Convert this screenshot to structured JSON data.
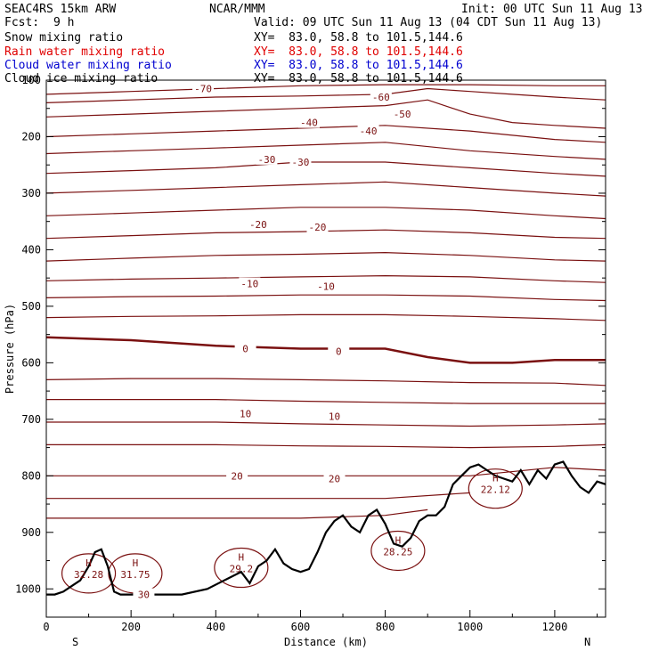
{
  "header": {
    "model": "SEAC4RS 15km ARW",
    "org": "NCAR/MMM",
    "init": "Init: 00 UTC Sun 11 Aug 13",
    "fcst_label": "Fcst:",
    "fcst_value": "9 h",
    "valid": "Valid: 09 UTC Sun 11 Aug 13 (04 CDT Sun 11 Aug 13)"
  },
  "fields": [
    {
      "name": "Snow mixing ratio",
      "xy": "XY=  83.0, 58.8 to 101.5,144.6",
      "color": "#000000"
    },
    {
      "name": "Rain water mixing ratio",
      "xy": "XY=  83.0, 58.8 to 101.5,144.6",
      "color": "#e00000"
    },
    {
      "name": "Cloud water mixing ratio",
      "xy": "XY=  83.0, 58.8 to 101.5,144.6",
      "color": "#0000d0"
    },
    {
      "name": "Cloud ice mixing ratio",
      "xy": "XY=  83.0, 58.8 to 101.5,144.6",
      "color": "#000000"
    }
  ],
  "chart_data": {
    "type": "line",
    "xlabel": "Distance (km)",
    "ylabel": "Pressure (hPa)",
    "xlim": [
      0,
      1320
    ],
    "ylim": [
      1050,
      100
    ],
    "x_ticks": [
      0,
      200,
      400,
      600,
      800,
      1000,
      1200
    ],
    "y_ticks": [
      200,
      300,
      400,
      500,
      600,
      700,
      800,
      900,
      1000
    ],
    "y_ticks_labeled": [
      "200",
      "300",
      "400",
      "500",
      "600",
      "700",
      "800",
      "900",
      "1000"
    ],
    "x_ticks_labeled": [
      "0",
      "200",
      "400",
      "600",
      "800",
      "1000",
      "1200"
    ],
    "y_top_label": "100",
    "x_end_labels": {
      "left": "S",
      "right": "N"
    },
    "line_color": "#7a1010",
    "terrain_color": "#000000",
    "contours": [
      {
        "x": [
          0,
          200,
          400,
          600,
          800,
          900,
          1000,
          1100,
          1200,
          1320
        ],
        "y": [
          555,
          560,
          570,
          575,
          575,
          590,
          600,
          600,
          595,
          595
        ],
        "bold": true
      },
      {
        "x": [
          0,
          200,
          400,
          600,
          800,
          1000,
          1200,
          1320
        ],
        "y": [
          125,
          120,
          115,
          110,
          108,
          108,
          110,
          110
        ]
      },
      {
        "x": [
          0,
          200,
          400,
          600,
          800,
          900,
          1000,
          1100,
          1200,
          1320
        ],
        "y": [
          140,
          135,
          130,
          128,
          125,
          115,
          120,
          125,
          130,
          135
        ]
      },
      {
        "x": [
          0,
          200,
          400,
          600,
          800,
          900,
          1000,
          1100,
          1200,
          1320
        ],
        "y": [
          165,
          160,
          155,
          150,
          145,
          135,
          160,
          175,
          180,
          185
        ]
      },
      {
        "x": [
          0,
          200,
          400,
          600,
          800,
          1000,
          1200,
          1320
        ],
        "y": [
          200,
          195,
          190,
          185,
          180,
          190,
          205,
          210
        ]
      },
      {
        "x": [
          0,
          200,
          400,
          600,
          800,
          1000,
          1200,
          1320
        ],
        "y": [
          230,
          225,
          220,
          215,
          210,
          225,
          235,
          240
        ]
      },
      {
        "x": [
          0,
          200,
          400,
          600,
          800,
          1000,
          1200,
          1320
        ],
        "y": [
          265,
          260,
          255,
          245,
          245,
          255,
          265,
          270
        ]
      },
      {
        "x": [
          0,
          200,
          400,
          600,
          800,
          1000,
          1200,
          1320
        ],
        "y": [
          300,
          295,
          290,
          285,
          280,
          290,
          300,
          305
        ]
      },
      {
        "x": [
          0,
          200,
          400,
          600,
          800,
          1000,
          1200,
          1320
        ],
        "y": [
          340,
          335,
          330,
          325,
          325,
          330,
          340,
          345
        ]
      },
      {
        "x": [
          0,
          200,
          400,
          600,
          800,
          1000,
          1200,
          1320
        ],
        "y": [
          380,
          375,
          370,
          368,
          365,
          370,
          378,
          380
        ]
      },
      {
        "x": [
          0,
          200,
          400,
          600,
          800,
          1000,
          1200,
          1320
        ],
        "y": [
          420,
          415,
          410,
          408,
          405,
          410,
          418,
          420
        ]
      },
      {
        "x": [
          0,
          200,
          400,
          600,
          800,
          1000,
          1200,
          1320
        ],
        "y": [
          455,
          452,
          450,
          448,
          446,
          448,
          455,
          458
        ]
      },
      {
        "x": [
          0,
          200,
          400,
          600,
          800,
          1000,
          1200,
          1320
        ],
        "y": [
          485,
          483,
          482,
          480,
          480,
          482,
          488,
          490
        ]
      },
      {
        "x": [
          0,
          200,
          400,
          600,
          800,
          1000,
          1200,
          1320
        ],
        "y": [
          520,
          518,
          517,
          515,
          515,
          518,
          522,
          525
        ]
      },
      {
        "x": [
          0,
          200,
          400,
          600,
          800,
          1000,
          1200,
          1320
        ],
        "y": [
          630,
          628,
          628,
          630,
          632,
          635,
          636,
          640
        ]
      },
      {
        "x": [
          0,
          200,
          400,
          600,
          800,
          1000,
          1200,
          1320
        ],
        "y": [
          665,
          665,
          665,
          668,
          670,
          672,
          672,
          672
        ]
      },
      {
        "x": [
          0,
          200,
          400,
          600,
          800,
          1000,
          1200,
          1320
        ],
        "y": [
          705,
          705,
          705,
          708,
          710,
          712,
          710,
          708
        ]
      },
      {
        "x": [
          0,
          200,
          400,
          600,
          800,
          1000,
          1200,
          1320
        ],
        "y": [
          745,
          745,
          745,
          747,
          748,
          750,
          748,
          745
        ]
      },
      {
        "x": [
          0,
          200,
          400,
          600,
          800,
          1000,
          1200,
          1320
        ],
        "y": [
          800,
          800,
          800,
          800,
          800,
          800,
          785,
          790
        ]
      },
      {
        "x": [
          0,
          200,
          400,
          600,
          800,
          1000
        ],
        "y": [
          840,
          840,
          840,
          840,
          840,
          830
        ]
      },
      {
        "x": [
          0,
          200,
          400,
          600,
          800,
          900
        ],
        "y": [
          875,
          875,
          875,
          875,
          870,
          860
        ]
      }
    ],
    "contour_labels": [
      {
        "text": "-70",
        "x": 370,
        "y": 115
      },
      {
        "text": "-60",
        "x": 790,
        "y": 130
      },
      {
        "text": "-50",
        "x": 840,
        "y": 160
      },
      {
        "text": "-40",
        "x": 620,
        "y": 175
      },
      {
        "text": "-40",
        "x": 760,
        "y": 190
      },
      {
        "text": "-30",
        "x": 520,
        "y": 240
      },
      {
        "text": "-30",
        "x": 600,
        "y": 245
      },
      {
        "text": "-20",
        "x": 500,
        "y": 355
      },
      {
        "text": "-20",
        "x": 640,
        "y": 360
      },
      {
        "text": "-10",
        "x": 480,
        "y": 460
      },
      {
        "text": "-10",
        "x": 660,
        "y": 465
      },
      {
        "text": "0",
        "x": 470,
        "y": 575
      },
      {
        "text": "0",
        "x": 690,
        "y": 580
      },
      {
        "text": "10",
        "x": 470,
        "y": 690
      },
      {
        "text": "10",
        "x": 680,
        "y": 695
      },
      {
        "text": "20",
        "x": 450,
        "y": 800
      },
      {
        "text": "20",
        "x": 680,
        "y": 805
      },
      {
        "text": "30",
        "x": 230,
        "y": 1010
      }
    ],
    "highs": [
      {
        "text": "H",
        "value": "32.28",
        "x": 100,
        "y": 960
      },
      {
        "text": "H",
        "value": "31.75",
        "x": 210,
        "y": 960
      },
      {
        "text": "H",
        "value": "29.2",
        "x": 460,
        "y": 950
      },
      {
        "text": "H",
        "value": "28.25",
        "x": 830,
        "y": 920
      },
      {
        "text": "H",
        "value": "22.12",
        "x": 1060,
        "y": 810
      }
    ],
    "terrain": {
      "x": [
        0,
        20,
        40,
        60,
        80,
        100,
        115,
        130,
        145,
        160,
        175,
        190,
        200,
        260,
        320,
        380,
        420,
        460,
        480,
        500,
        520,
        540,
        560,
        580,
        600,
        620,
        640,
        660,
        680,
        700,
        720,
        740,
        760,
        780,
        800,
        820,
        840,
        860,
        880,
        900,
        920,
        940,
        960,
        980,
        1000,
        1020,
        1040,
        1060,
        1080,
        1100,
        1120,
        1140,
        1160,
        1180,
        1200,
        1220,
        1240,
        1260,
        1280,
        1300,
        1320
      ],
      "y": [
        1010,
        1010,
        1005,
        995,
        985,
        960,
        935,
        930,
        960,
        1005,
        1010,
        1010,
        1010,
        1010,
        1010,
        1000,
        985,
        970,
        990,
        960,
        950,
        930,
        955,
        965,
        970,
        965,
        935,
        900,
        880,
        870,
        890,
        900,
        870,
        860,
        885,
        920,
        925,
        910,
        880,
        870,
        870,
        855,
        815,
        800,
        785,
        780,
        790,
        800,
        805,
        810,
        790,
        815,
        790,
        805,
        780,
        775,
        800,
        820,
        830,
        810,
        815
      ]
    }
  }
}
